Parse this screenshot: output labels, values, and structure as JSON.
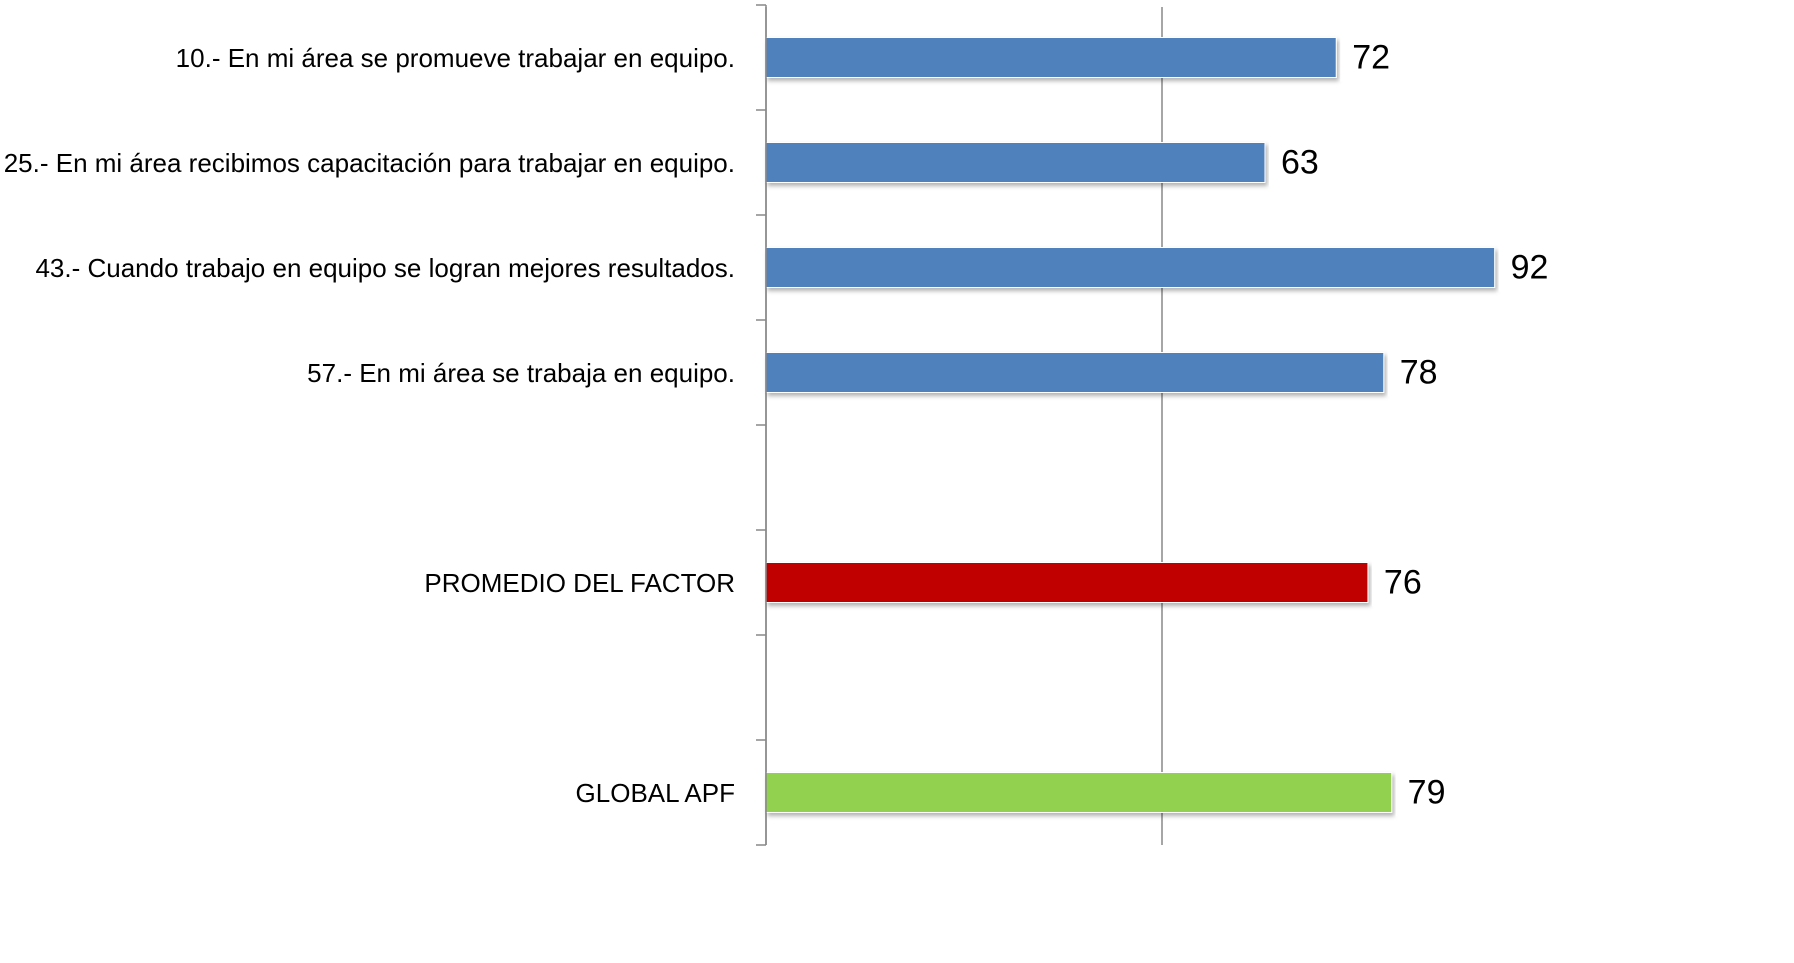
{
  "chart_data": {
    "type": "barh",
    "categories": [
      "10.- En mi área se promueve trabajar en equipo.",
      "25.- En mi área recibimos capacitación para trabajar en equipo.",
      "43.- Cuando trabajo en equipo se logran mejores resultados.",
      "57.- En mi área se trabaja en equipo.",
      null,
      "PROMEDIO DEL FACTOR",
      null,
      "GLOBAL APF"
    ],
    "values": [
      72,
      63,
      92,
      78,
      null,
      76,
      null,
      79
    ],
    "colors": [
      "#4f81bd",
      "#4f81bd",
      "#4f81bd",
      "#4f81bd",
      null,
      "#c00000",
      null,
      "#92d050"
    ],
    "xlim": [
      0,
      100
    ],
    "xticks": [
      0,
      50
    ],
    "grid": true
  }
}
